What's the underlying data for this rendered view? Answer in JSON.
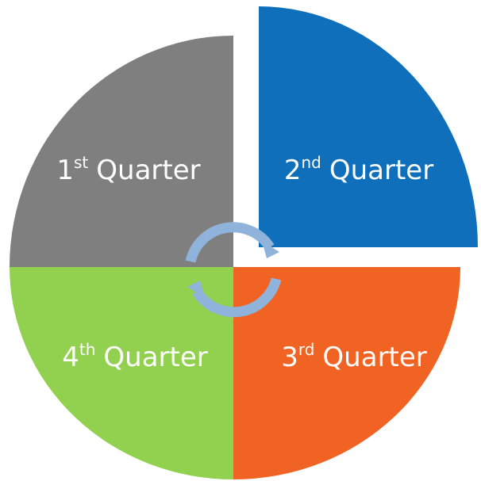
{
  "segments": [
    {
      "number": "1",
      "suffix": "st",
      "word": "Quarter",
      "color": "#7f7f7f"
    },
    {
      "number": "2",
      "suffix": "nd",
      "word": "Quarter",
      "color": "#0f6fba"
    },
    {
      "number": "3",
      "suffix": "rd",
      "word": "Quarter",
      "color": "#f06322"
    },
    {
      "number": "4",
      "suffix": "th",
      "word": "Quarter",
      "color": "#92d050"
    }
  ]
}
